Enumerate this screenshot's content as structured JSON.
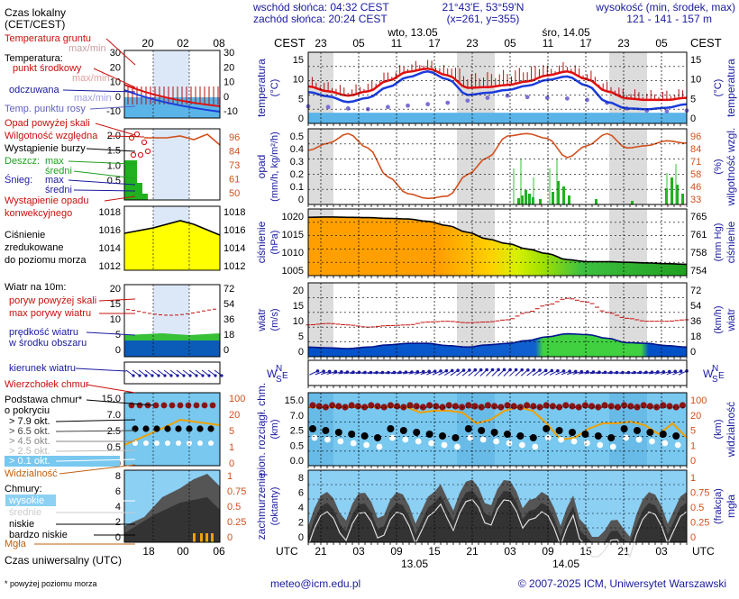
{
  "header": {
    "sunrise": "wschód słońca: 04:32 CEST",
    "sunset": "zachód słońca: 20:24 CEST",
    "location": "21°43'E, 53°59'N",
    "grid": "(x=261,  y=355)",
    "elevation_label": "wysokość (min, środek, max)",
    "elevation_values": "121 - 141 - 157 m"
  },
  "time_axis": {
    "tz_left": "CEST",
    "tz_right": "CEST",
    "day1": "wto, 13.05",
    "day2": "śro, 14.05",
    "top_hours": [
      "23",
      "05",
      "11",
      "17",
      "23",
      "05",
      "11",
      "17",
      "23",
      "05"
    ],
    "bottom_hours": [
      "21",
      "03",
      "09",
      "15",
      "21",
      "03",
      "09",
      "15",
      "21",
      "03"
    ],
    "utc_left": "UTC",
    "utc_right": "UTC",
    "date1": "13.05",
    "date2": "14.05"
  },
  "legend": {
    "local_time": "Czas lokalny",
    "local_time_zone": "(CET/CEST)",
    "local_hours": [
      "20",
      "02",
      "08"
    ],
    "soil_temp": "Temperatura gruntu",
    "soil_temp_sub": "max/min",
    "temperature": "Temperatura:",
    "mid_point": "punkt środkowy",
    "max_min": "max/min",
    "perceived": "odczuwana",
    "max_min2": "max/min",
    "dew_point": "Temp. punktu rosy",
    "temp_ticks_l": [
      "30",
      "20",
      "10",
      "0",
      "-10"
    ],
    "temp_ticks_r": [
      "30",
      "20",
      "10",
      "0",
      "-10"
    ],
    "precip_over": "Opad powyżej skali",
    "rel_humidity": "Wilgotność względna",
    "storm": "Wystąpienie burzy",
    "rain": "Deszcz:",
    "rain_max": "max",
    "rain_mid": "średni",
    "snow": "Śnieg:",
    "snow_max": "max",
    "snow_mid": "średni",
    "convective": "Wystąpienie opadu",
    "convective2": "konwekcyjnego",
    "precip_ticks": [
      "2.0",
      "1.5",
      "1.0",
      "0.5"
    ],
    "rh_ticks": [
      "96",
      "84",
      "73",
      "61",
      "50"
    ],
    "pressure": "Ciśnienie",
    "pressure2": "zredukowane",
    "pressure3": "do poziomu morza",
    "press_ticks_l": [
      "1018",
      "1016",
      "1014",
      "1012"
    ],
    "press_ticks_r": [
      "1018",
      "1016",
      "1014",
      "1012"
    ],
    "wind_10m": "Wiatr na 10m:",
    "gust_over": "poryw powyżej skali",
    "max_gust": "max porywy wiatru",
    "wind_speed": "prędkość wiatru",
    "wind_speed2": "w środku obszaru",
    "wind_ticks_l": [
      "20",
      "15",
      "10",
      "5",
      "0"
    ],
    "wind_ticks_r": [
      "72",
      "54",
      "36",
      "18",
      "0"
    ],
    "wind_dir": "kierunek wiatru",
    "wind_shear": "Wierzchołek chmur",
    "cloud_base": "Podstawa chmur*",
    "cloud_base2": "o pokryciu",
    "okt79": "> 7.9 okt.",
    "okt65": "> 6.5 okt.",
    "okt45": "> 4.5 okt.",
    "okt25": "> 2.5 okt.",
    "okt01": "> 0.1 okt.",
    "visibility": "Widzialność",
    "cb_ticks_l": [
      "15.0",
      "7.0",
      "2.5",
      "0.5",
      "0"
    ],
    "cb_ticks_r": [
      "100",
      "20",
      "5",
      "1",
      "0"
    ],
    "clouds": "Chmury:",
    "high": "wysokie",
    "middle": "średnie",
    "low": "niskie",
    "very_low": "bardzo niskie",
    "fog": "Mgła",
    "cl_ticks_l": [
      "8",
      "6",
      "4",
      "2",
      "0"
    ],
    "cl_ticks_r": [
      "1",
      "0.75",
      "0.5",
      "0.25",
      "0"
    ],
    "utc_time": "Czas uniwersalny (UTC)",
    "utc_hours": [
      "18",
      "00",
      "06"
    ],
    "footnote": "* powyżej poziomu morza"
  },
  "panels": {
    "temp": {
      "label_l": "temperatura",
      "unit_l": "(°C)",
      "label_r": "temperatura",
      "unit_r": "(°C)",
      "ticks": [
        "15",
        "10",
        "5",
        "0"
      ]
    },
    "precip": {
      "label_l": "opad",
      "unit_l": "(mm/h, kg/m²/h)",
      "label_r": "wilgotność wzgl.",
      "unit_r": "(%)",
      "ticks_l": [
        "0.5",
        "0.4",
        "0.3",
        "0.2",
        "0.1",
        "0"
      ],
      "ticks_r": [
        "96",
        "84",
        "71",
        "58",
        "46",
        "33"
      ]
    },
    "press": {
      "label_l": "ciśnienie",
      "unit_l": "(hPa)",
      "label_r": "ciśnienie",
      "unit_r": "(mm Hg)",
      "ticks_l": [
        "1020",
        "1015",
        "1010",
        "1005"
      ],
      "ticks_r": [
        "765",
        "761",
        "758",
        "754"
      ]
    },
    "wind": {
      "label_l": "wiatr",
      "unit_l": "(m/s)",
      "label_r": "wiatr",
      "unit_r": "(km/h)",
      "ticks_l": [
        "20",
        "15",
        "10",
        "5",
        "0"
      ],
      "ticks_r": [
        "72",
        "54",
        "36",
        "18",
        "0"
      ]
    },
    "dir": {
      "n": "N",
      "s": "S",
      "w": "W",
      "e": "E"
    },
    "cloud": {
      "label_l": "pion. rozciągł. chm.",
      "unit_l": "(km)",
      "label_r": "widzialność",
      "unit_r": "(km)",
      "ticks_l": [
        "15.0",
        "7.0",
        "2.5",
        "0.5",
        "0.0"
      ],
      "ticks_r": [
        "100",
        "20",
        "5",
        "1",
        "0"
      ]
    },
    "cover": {
      "label_l": "zachmurzenie",
      "unit_l": "(oktanty)",
      "label_r": "mgła",
      "unit_r": "(frakcja)",
      "ticks_l": [
        "8",
        "6",
        "4",
        "2",
        "0"
      ],
      "ticks_r": [
        "1",
        "0.75",
        "0.5",
        "0.25",
        "0"
      ]
    }
  },
  "footer": {
    "email": "meteo@icm.edu.pl",
    "copyright": "© 2007-2025 ICM, Uniwersytet Warszawski"
  },
  "colors": {
    "night": "#dcdcdc",
    "temp_red": "#e01010",
    "temp_blue": "#1a3cdc",
    "rh_orange": "#d2501c",
    "ground": "#5ab4e8",
    "press_orange": "#ffa000",
    "press_yellow": "#ffff00",
    "wind_green": "#40d040",
    "wind_blue": "#0050c8",
    "cloud_sky": "#78c8f0"
  },
  "chart_data": [
    {
      "type": "line",
      "title": "temperatura (°C)",
      "x": [
        "21",
        "00",
        "03",
        "06",
        "09",
        "12",
        "15",
        "18",
        "21",
        "00",
        "03",
        "06",
        "09",
        "12",
        "15",
        "18",
        "21",
        "00",
        "03",
        "06"
      ],
      "series": [
        {
          "name": "temperature",
          "values": [
            7.4,
            6.0,
            4.8,
            6.0,
            9.0,
            11.5,
            12.4,
            10.5,
            7.0,
            7.2,
            7.8,
            8.8,
            10.5,
            11.6,
            9.4,
            6.0,
            4.0,
            3.6,
            3.6,
            4.2
          ]
        },
        {
          "name": "perceived",
          "values": [
            5.8,
            4.6,
            3.0,
            4.2,
            7.2,
            10.0,
            11.6,
            9.4,
            5.0,
            5.6,
            6.4,
            7.6,
            9.2,
            10.2,
            7.6,
            3.0,
            1.2,
            1.0,
            1.4,
            2.4
          ]
        },
        {
          "name": "dew point",
          "values": [
            1.8,
            1.6,
            1.2,
            1.0,
            1.6,
            2.0,
            2.4,
            2.8,
            3.4,
            4.2,
            4.8,
            4.4,
            4.2,
            4.0,
            3.6,
            2.8,
            1.2,
            0.6,
            0.4,
            0.6
          ]
        }
      ],
      "ylim": [
        -3,
        17
      ]
    },
    {
      "type": "line",
      "title": "wilgotność wzgl. (%)",
      "series": [
        {
          "name": "relative humidity",
          "values": [
            78,
            84,
            92,
            80,
            56,
            42,
            38,
            40,
            58,
            72,
            90,
            92,
            88,
            72,
            82,
            92,
            80,
            82,
            86,
            84
          ]
        }
      ],
      "ylim": [
        33,
        96
      ]
    },
    {
      "type": "area",
      "title": "ciśnienie (hPa)",
      "series": [
        {
          "name": "pressure",
          "values": [
            1019.5,
            1019.6,
            1019.5,
            1019.4,
            1019.2,
            1019.0,
            1018.3,
            1017.0,
            1015.0,
            1013.0,
            1011.6,
            1010.0,
            1008.6,
            1006.8,
            1006.2,
            1006.2,
            1006.0,
            1005.8,
            1005.6,
            1005.4
          ]
        }
      ],
      "ylim": [
        1002,
        1022
      ]
    },
    {
      "type": "area",
      "title": "wiatr (m/s)",
      "series": [
        {
          "name": "wind speed",
          "values": [
            2.6,
            2.4,
            2.2,
            2.6,
            3.2,
            3.6,
            3.6,
            3.0,
            2.6,
            3.2,
            3.6,
            4.4,
            5.4,
            6.2,
            6.0,
            5.0,
            3.8,
            3.6,
            3.0,
            2.6
          ]
        },
        {
          "name": "max gust",
          "values": [
            8.6,
            9.0,
            8.6,
            8.0,
            8.4,
            8.6,
            9.4,
            9.6,
            9.2,
            9.4,
            10.0,
            12.0,
            14.0,
            15.8,
            14.8,
            12.0,
            10.4,
            9.6,
            9.6,
            10.0
          ]
        }
      ],
      "ylim": [
        0,
        20
      ]
    }
  ]
}
